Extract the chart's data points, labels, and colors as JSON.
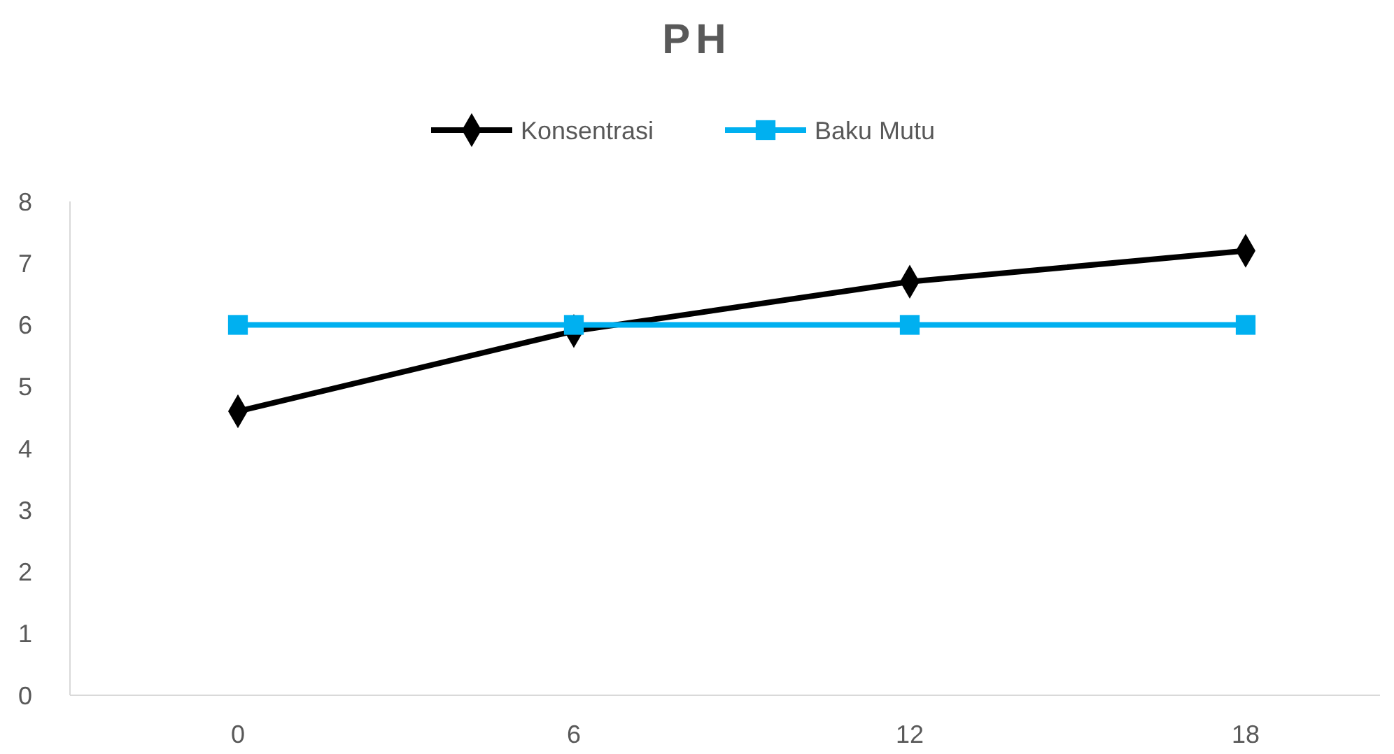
{
  "chart_data": {
    "type": "line",
    "title": "PH",
    "categories": [
      "0",
      "6",
      "12",
      "18"
    ],
    "series": [
      {
        "name": "Konsentrasi",
        "color": "#000000",
        "values": [
          4.6,
          5.9,
          6.7,
          7.2
        ],
        "marker": "diamond"
      },
      {
        "name": "Baku Mutu",
        "color": "#00b0f0",
        "values": [
          6,
          6,
          6,
          6
        ],
        "marker": "square"
      }
    ],
    "ylim": [
      0,
      8
    ],
    "yticks": [
      0,
      1,
      2,
      3,
      4,
      5,
      6,
      7,
      8
    ],
    "grid": false,
    "legend": "top"
  }
}
